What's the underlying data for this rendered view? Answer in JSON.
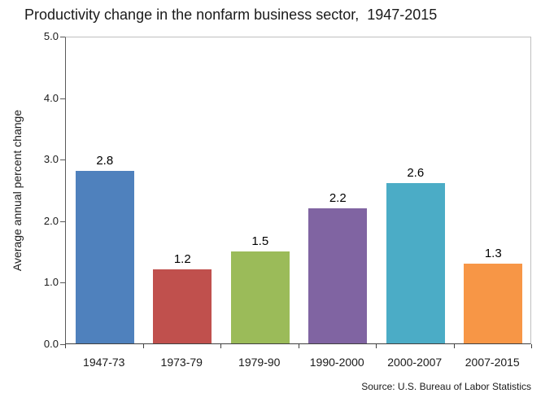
{
  "chart_data": {
    "type": "bar",
    "title": "Productivity change in the nonfarm business sector,  1947-2015",
    "ylabel": "Average annual percent change",
    "xlabel": "",
    "categories": [
      "1947-73",
      "1973-79",
      "1979-90",
      "1990-2000",
      "2000-2007",
      "2007-2015"
    ],
    "values": [
      2.8,
      1.2,
      1.5,
      2.2,
      2.6,
      1.3
    ],
    "value_labels": [
      "2.8",
      "1.2",
      "1.5",
      "2.2",
      "2.6",
      "1.3"
    ],
    "bar_colors": [
      "#4F81BD",
      "#C0504D",
      "#9BBB59",
      "#8064A2",
      "#4BACC6",
      "#F79646"
    ],
    "ylim": [
      0,
      5
    ],
    "ytick_labels": [
      "0.0",
      "1.0",
      "2.0",
      "3.0",
      "4.0",
      "5.0"
    ],
    "grid": false,
    "legend": null,
    "source": "Source: U.S. Bureau of Labor Statistics",
    "colors": {
      "axis": "#595959",
      "x_axis": "#404040",
      "plot_border": "#BFBFBF",
      "text": "#000000",
      "background": "#FFFFFF"
    }
  }
}
